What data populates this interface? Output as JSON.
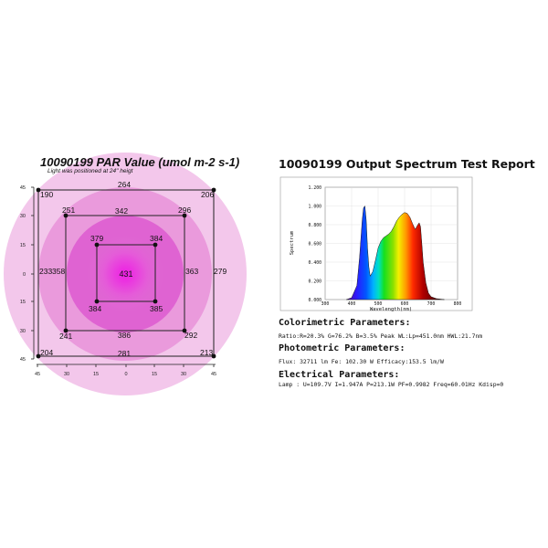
{
  "par": {
    "title": "10090199 PAR Value (umol m-2 s-1)",
    "note": "Light was positioned at 24\" heigt",
    "center_value": "431",
    "points": [
      {
        "id": "p-outer-tl",
        "label": "190"
      },
      {
        "id": "p-outer-t",
        "label": "264"
      },
      {
        "id": "p-outer-tr",
        "label": "206"
      },
      {
        "id": "p-outer-l",
        "label": "233"
      },
      {
        "id": "p-outer-r",
        "label": "279"
      },
      {
        "id": "p-outer-bl",
        "label": "204"
      },
      {
        "id": "p-outer-b",
        "label": "281"
      },
      {
        "id": "p-outer-br",
        "label": "213"
      },
      {
        "id": "p-mid-tl",
        "label": "251"
      },
      {
        "id": "p-mid-t",
        "label": "342"
      },
      {
        "id": "p-mid-tr",
        "label": "296"
      },
      {
        "id": "p-mid-l",
        "label": "358"
      },
      {
        "id": "p-mid-r",
        "label": "363"
      },
      {
        "id": "p-mid-bl",
        "label": "241"
      },
      {
        "id": "p-mid-b",
        "label": "386"
      },
      {
        "id": "p-mid-br",
        "label": "292"
      },
      {
        "id": "p-in-tl",
        "label": "379"
      },
      {
        "id": "p-in-tr",
        "label": "384"
      },
      {
        "id": "p-in-bl",
        "label": "384"
      },
      {
        "id": "p-in-br",
        "label": "385"
      }
    ],
    "axis_x_ticks": [
      "45",
      "30",
      "15",
      "0",
      "15",
      "30",
      "45"
    ],
    "axis_y_ticks": [
      "45",
      "30",
      "15",
      "0",
      "15",
      "30",
      "45"
    ],
    "colors": {
      "outer": "#f4c6ea",
      "mid": "#ec94dc",
      "inner": "#e05ed2",
      "center": "#e73ce0"
    }
  },
  "spectrum": {
    "title": "10090199 Output Spectrum Test Report",
    "chart_data": {
      "type": "area",
      "title": "",
      "xlabel": "Wavelength(nm)",
      "ylabel": "Spectrum",
      "xlim": [
        300,
        800
      ],
      "ylim": [
        0,
        1.2
      ],
      "x_ticks": [
        "300",
        "400",
        "500",
        "600",
        "700",
        "800"
      ],
      "y_ticks": [
        "0.000",
        "0.200",
        "0.400",
        "0.600",
        "0.800",
        "1.000",
        "1.200"
      ],
      "x": [
        380,
        400,
        420,
        430,
        440,
        445,
        450,
        455,
        460,
        465,
        470,
        480,
        490,
        500,
        510,
        520,
        530,
        540,
        550,
        560,
        570,
        580,
        590,
        600,
        610,
        620,
        630,
        640,
        650,
        655,
        660,
        665,
        670,
        680,
        690,
        700,
        720,
        750
      ],
      "values": [
        0.0,
        0.02,
        0.15,
        0.45,
        0.85,
        0.98,
        1.0,
        0.85,
        0.55,
        0.35,
        0.25,
        0.3,
        0.42,
        0.55,
        0.62,
        0.66,
        0.68,
        0.7,
        0.73,
        0.78,
        0.84,
        0.88,
        0.91,
        0.93,
        0.92,
        0.88,
        0.81,
        0.75,
        0.8,
        0.82,
        0.78,
        0.6,
        0.4,
        0.18,
        0.07,
        0.03,
        0.01,
        0.0
      ]
    },
    "colorimetric": {
      "heading": "Colorimetric Parameters:",
      "line": "Ratio:R=20.3% G=76.2% B=3.5%  Peak WL:Lp=451.0nm  HWL:21.7nm"
    },
    "photometric": {
      "heading": "Photometric Parameters:",
      "line": "Flux: 32711 lm   Fe: 102.30 W   Efficacy:153.5 lm/W"
    },
    "electrical": {
      "heading": "Electrical Parameters:",
      "line": "Lamp     : U=109.7V  I=1.947A  P=213.1W PF=0.9982  Freq=60.01Hz Kdisp=0"
    }
  }
}
